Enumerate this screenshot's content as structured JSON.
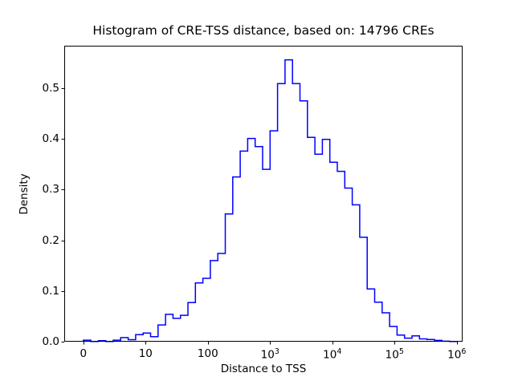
{
  "title": "Histogram of CRE-TSS distance, based on: 14796 CREs",
  "chart_data": {
    "type": "step-histogram",
    "title": "Histogram of CRE-TSS distance, based on: 14796 CREs",
    "xlabel": "Distance to TSS",
    "ylabel": "Density",
    "sample_count": "14796",
    "x_scale": "symlog (ticks at 0, 10, 100, 10^3, 10^4, 10^5, 10^6)",
    "x_ticks": [
      {
        "label": "0",
        "u": 0
      },
      {
        "label": "10",
        "u": 1
      },
      {
        "label": "100",
        "u": 2
      },
      {
        "label": "10^3",
        "u": 3
      },
      {
        "label": "10^4",
        "u": 4
      },
      {
        "label": "10^5",
        "u": 5
      },
      {
        "label": "10^6",
        "u": 6
      }
    ],
    "y_ticks": [
      {
        "label": "0.0",
        "value": 0.0
      },
      {
        "label": "0.1",
        "value": 0.1
      },
      {
        "label": "0.2",
        "value": 0.2
      },
      {
        "label": "0.3",
        "value": 0.3
      },
      {
        "label": "0.4",
        "value": 0.4
      },
      {
        "label": "0.5",
        "value": 0.5
      }
    ],
    "xlim_u": [
      -0.31,
      6.09
    ],
    "ylim": [
      0,
      0.582
    ],
    "grid": false,
    "legend": "none",
    "line_color": "#0000ff",
    "axes_color": "#000000",
    "background_color": "#ffffff",
    "n_bins": 50,
    "bin_u_start": 0,
    "bin_u_width": 0.12,
    "densities": [
      0.003,
      0.0005,
      0.002,
      0.0005,
      0.003,
      0.008,
      0.004,
      0.014,
      0.017,
      0.01,
      0.033,
      0.054,
      0.046,
      0.052,
      0.077,
      0.116,
      0.125,
      0.16,
      0.174,
      0.252,
      0.325,
      0.376,
      0.401,
      0.385,
      0.34,
      0.416,
      0.509,
      0.556,
      0.509,
      0.475,
      0.403,
      0.37,
      0.399,
      0.354,
      0.336,
      0.303,
      0.27,
      0.206,
      0.104,
      0.078,
      0.057,
      0.03,
      0.013,
      0.007,
      0.0115,
      0.0056,
      0.0045,
      0.0025,
      0.001,
      0.0005
    ]
  }
}
